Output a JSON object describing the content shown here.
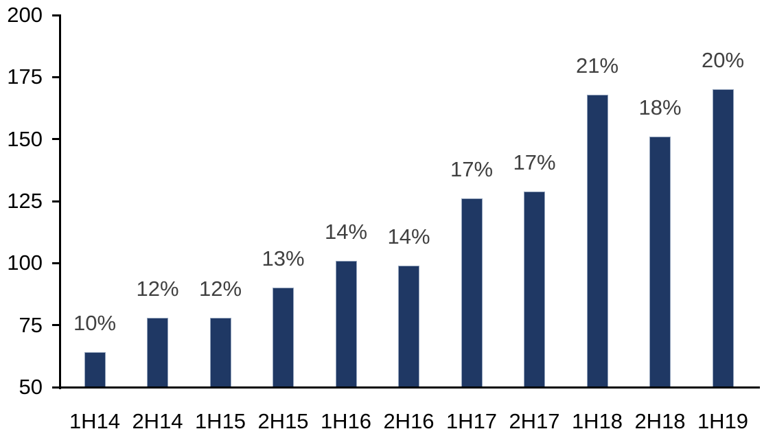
{
  "chart_data": {
    "type": "bar",
    "categories": [
      "1H14",
      "2H14",
      "1H15",
      "2H15",
      "1H16",
      "2H16",
      "1H17",
      "2H17",
      "1H18",
      "2H18",
      "1H19"
    ],
    "values": [
      64,
      78,
      78,
      90,
      101,
      99,
      126,
      129,
      168,
      151,
      170
    ],
    "bar_labels": [
      "10%",
      "12%",
      "12%",
      "13%",
      "14%",
      "14%",
      "17%",
      "17%",
      "21%",
      "18%",
      "20%"
    ],
    "title": "",
    "xlabel": "",
    "ylabel": "",
    "ylim": [
      50,
      200
    ],
    "yticks": [
      50,
      75,
      100,
      125,
      150,
      175,
      200
    ],
    "grid": false,
    "legend_position": "none",
    "bar_color": "#1F3864",
    "bar_border_color": "#95A5BD",
    "axis_color": "#000000",
    "data_label_color": "#404040",
    "tick_label_color": "#000000",
    "background_color": "#FFFFFF"
  }
}
